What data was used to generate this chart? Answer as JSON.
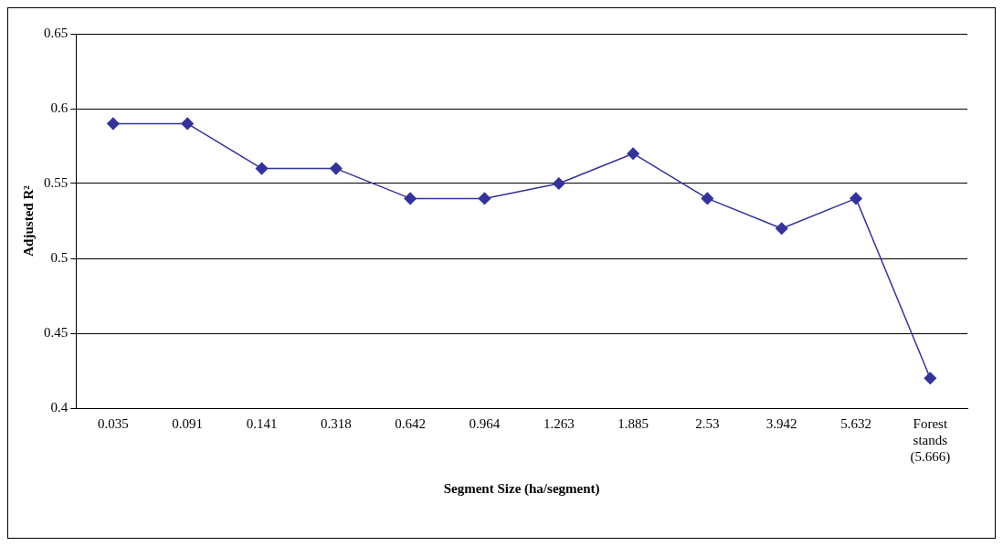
{
  "chart_data": {
    "type": "line",
    "xlabel": "Segment Size (ha/segment)",
    "ylabel": "Adjusted R²",
    "categories": [
      "0.035",
      "0.091",
      "0.141",
      "0.318",
      "0.642",
      "0.964",
      "1.263",
      "1.885",
      "2.53",
      "3.942",
      "5.632",
      "Forest stands (5.666)"
    ],
    "series": [
      {
        "color": "#333399",
        "values": [
          0.59,
          0.59,
          0.56,
          0.56,
          0.54,
          0.54,
          0.55,
          0.57,
          0.54,
          0.52,
          0.54,
          0.42
        ]
      }
    ],
    "ylim": [
      0.4,
      0.65
    ],
    "yticks": [
      0.4,
      0.45,
      0.5,
      0.55,
      0.6,
      0.65
    ],
    "grid": "y",
    "legend": false,
    "marker": "diamond",
    "line_style": "solid"
  }
}
